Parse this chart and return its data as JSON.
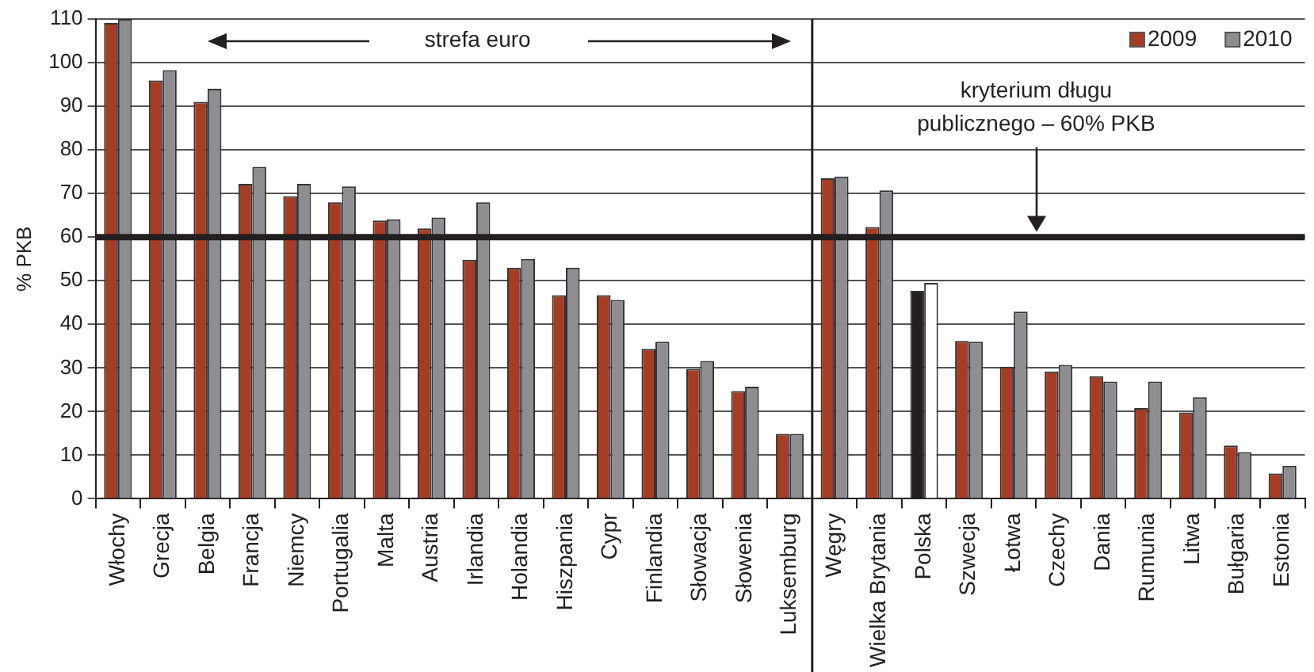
{
  "chart_data": {
    "type": "bar",
    "ylabel": "% PKB",
    "categories": [
      "Włochy",
      "Grecja",
      "Belgia",
      "Francja",
      "Niemcy",
      "Portugalia",
      "Malta",
      "Austria",
      "Irlandia",
      "Holandia",
      "Hiszpania",
      "Cypr",
      "Finlandia",
      "Słowacja",
      "Słowenia",
      "Luksemburg",
      "Węgry",
      "Wielka Brytania",
      "Polska",
      "Szwecja",
      "Łotwa",
      "Czechy",
      "Dania",
      "Rumunia",
      "Litwa",
      "Bułgaria",
      "Estonia"
    ],
    "series": [
      {
        "name": "2009",
        "color": "#a63c24",
        "colors": [
          "#a63c24",
          "#a63c24",
          "#a63c24",
          "#a63c24",
          "#a63c24",
          "#a63c24",
          "#a63c24",
          "#a63c24",
          "#a63c24",
          "#a63c24",
          "#a63c24",
          "#a63c24",
          "#a63c24",
          "#a63c24",
          "#a63c24",
          "#a63c24",
          "#a63c24",
          "#a63c24",
          "#231f20",
          "#a63c24",
          "#a63c24",
          "#a63c24",
          "#a63c24",
          "#a63c24",
          "#a63c24",
          "#a63c24",
          "#a63c24"
        ],
        "values": [
          109.1,
          95.9,
          91.0,
          72.2,
          69.4,
          68.0,
          63.8,
          62.0,
          54.8,
          53.0,
          46.7,
          46.7,
          34.4,
          29.8,
          24.7,
          14.9,
          73.5,
          62.3,
          47.7,
          36.2,
          30.3,
          29.2,
          28.1,
          20.8,
          19.8,
          12.2,
          5.8
        ]
      },
      {
        "name": "2010",
        "color": "#8e8e92",
        "colors": [
          "#8e8e92",
          "#8e8e92",
          "#8e8e92",
          "#8e8e92",
          "#8e8e92",
          "#8e8e92",
          "#8e8e92",
          "#8e8e92",
          "#8e8e92",
          "#8e8e92",
          "#8e8e92",
          "#8e8e92",
          "#8e8e92",
          "#8e8e92",
          "#8e8e92",
          "#8e8e92",
          "#8e8e92",
          "#8e8e92",
          "#ffffff",
          "#8e8e92",
          "#8e8e92",
          "#8e8e92",
          "#8e8e92",
          "#8e8e92",
          "#8e8e92",
          "#8e8e92",
          "#8e8e92"
        ],
        "values": [
          110,
          98.3,
          94.0,
          76.1,
          72.2,
          71.6,
          64.1,
          64.5,
          68.0,
          55.0,
          53.0,
          45.6,
          36.0,
          31.6,
          25.7,
          14.9,
          73.9,
          70.7,
          49.5,
          36.0,
          42.9,
          30.7,
          26.9,
          26.9,
          23.3,
          10.7,
          7.6
        ]
      }
    ],
    "ylim": [
      0,
      110
    ],
    "yticks": [
      0,
      10,
      20,
      30,
      40,
      50,
      60,
      70,
      80,
      90,
      100,
      110
    ],
    "grid": "y",
    "legend": "top right",
    "ref_lines": [
      {
        "axis": "y",
        "value": 60,
        "color": "#231f20"
      },
      {
        "axis": "x",
        "value": "Luksemburg",
        "color": "#231f20"
      }
    ],
    "annotations": [
      "strefa euro",
      "kryterium długu publicznego – 60% PKB"
    ]
  }
}
